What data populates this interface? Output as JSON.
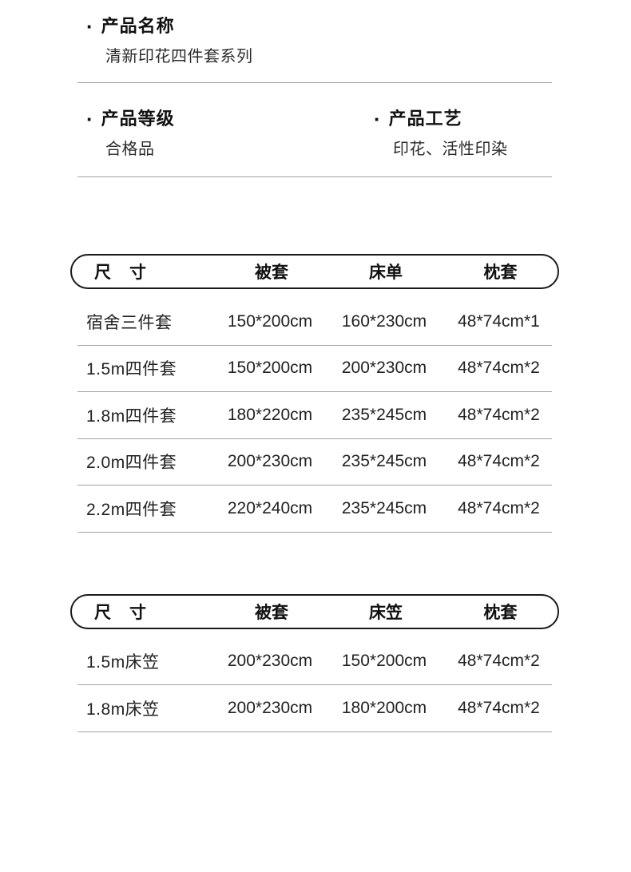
{
  "bullet": "·",
  "colors": {
    "background": "#ffffff",
    "text": "#1a1a1a",
    "divider": "#a3a3a3",
    "pill_border": "#1a1a1a"
  },
  "sections": {
    "product_name": {
      "label": "产品名称",
      "value": "清新印花四件套系列"
    },
    "product_grade": {
      "label": "产品等级",
      "value": "合格品"
    },
    "product_craft": {
      "label": "产品工艺",
      "value": "印花、活性印染"
    }
  },
  "tables": [
    {
      "headers": [
        "尺　寸",
        "被套",
        "床单",
        "枕套"
      ],
      "rows": [
        [
          "宿舍三件套",
          "150*200cm",
          "160*230cm",
          "48*74cm*1"
        ],
        [
          "1.5m四件套",
          "150*200cm",
          "200*230cm",
          "48*74cm*2"
        ],
        [
          "1.8m四件套",
          "180*220cm",
          "235*245cm",
          "48*74cm*2"
        ],
        [
          "2.0m四件套",
          "200*230cm",
          "235*245cm",
          "48*74cm*2"
        ],
        [
          "2.2m四件套",
          "220*240cm",
          "235*245cm",
          "48*74cm*2"
        ]
      ]
    },
    {
      "headers": [
        "尺　寸",
        "被套",
        "床笠",
        "枕套"
      ],
      "rows": [
        [
          "1.5m床笠",
          "200*230cm",
          "150*200cm",
          "48*74cm*2"
        ],
        [
          "1.8m床笠",
          "200*230cm",
          "180*200cm",
          "48*74cm*2"
        ]
      ]
    }
  ]
}
